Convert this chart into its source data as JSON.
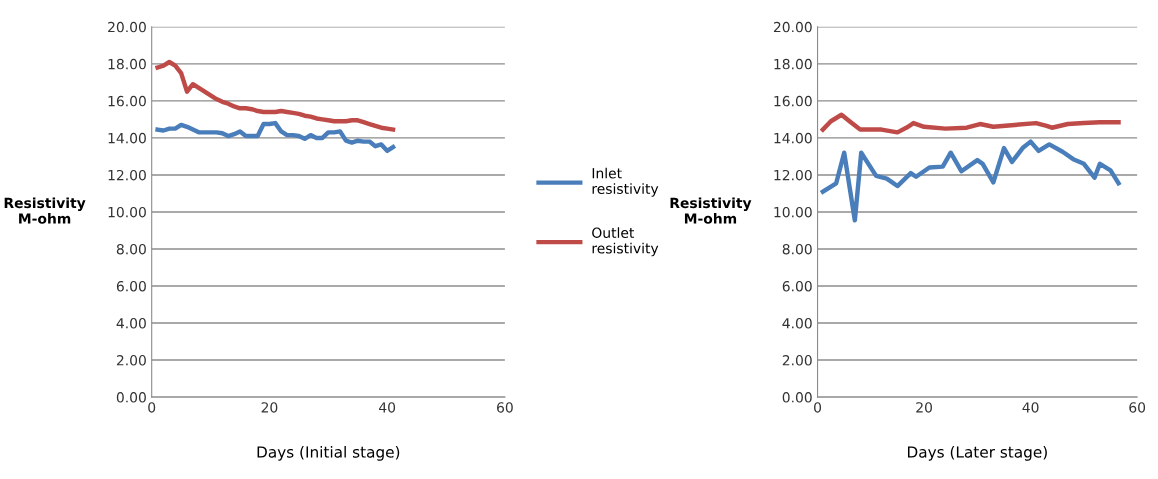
{
  "chart_data": [
    {
      "type": "line",
      "xlabel": "Days (Initial stage)",
      "ylabel": "Resistivity\nM-ohm",
      "xlim": [
        0,
        60
      ],
      "xticks": [
        0,
        20,
        40,
        60
      ],
      "ylim": [
        0,
        20
      ],
      "yticks": [
        {
          "value": 0,
          "label": "0.00"
        },
        {
          "value": 2,
          "label": "2.00"
        },
        {
          "value": 4,
          "label": "4.00"
        },
        {
          "value": 6,
          "label": "6.00"
        },
        {
          "value": 8,
          "label": "8.00"
        },
        {
          "value": 10,
          "label": "10.00"
        },
        {
          "value": 12,
          "label": "12.00"
        },
        {
          "value": 14,
          "label": "14.00"
        },
        {
          "value": 16,
          "label": "16.00"
        },
        {
          "value": 18,
          "label": "18.00"
        },
        {
          "value": 20,
          "label": "20.00"
        }
      ],
      "grid": "y",
      "legend": "right",
      "marker": "none",
      "line_style": "solid",
      "x": [
        1,
        2,
        3,
        4,
        5,
        6,
        7,
        8,
        9,
        10,
        11,
        12,
        13,
        14,
        15,
        16,
        17,
        18,
        19,
        20,
        21,
        22,
        23,
        24,
        25,
        26,
        27,
        28,
        29,
        30,
        31,
        32,
        33,
        34,
        35,
        36,
        37,
        38,
        39,
        40,
        41
      ],
      "series": [
        {
          "name": "Inlet\nresistivity",
          "color": "#4a7ebb",
          "values": [
            14.45,
            14.4,
            14.5,
            14.5,
            14.7,
            14.6,
            14.45,
            14.3,
            14.3,
            14.3,
            14.3,
            14.25,
            14.1,
            14.2,
            14.35,
            14.1,
            14.1,
            14.1,
            14.75,
            14.75,
            14.8,
            14.35,
            14.15,
            14.15,
            14.1,
            13.95,
            14.15,
            14.0,
            14.0,
            14.3,
            14.3,
            14.35,
            13.85,
            13.75,
            13.85,
            13.8,
            13.8,
            13.55,
            13.65,
            13.3,
            13.5
          ]
        },
        {
          "name": "Outlet\nresistivity",
          "color": "#be4b48",
          "values": [
            17.8,
            17.9,
            18.1,
            17.9,
            17.5,
            16.5,
            16.9,
            16.7,
            16.5,
            16.3,
            16.1,
            15.95,
            15.85,
            15.7,
            15.6,
            15.6,
            15.55,
            15.45,
            15.4,
            15.4,
            15.4,
            15.45,
            15.4,
            15.35,
            15.3,
            15.2,
            15.15,
            15.05,
            15.0,
            14.95,
            14.9,
            14.9,
            14.9,
            14.95,
            14.95,
            14.85,
            14.75,
            14.65,
            14.55,
            14.5,
            14.45
          ]
        }
      ]
    },
    {
      "type": "line",
      "xlabel": "Days (Later stage)",
      "ylabel": "Resistivity\nM-ohm",
      "xlim": [
        0,
        60
      ],
      "xticks": [
        0,
        20,
        40,
        60
      ],
      "ylim": [
        0,
        20
      ],
      "yticks": [
        {
          "value": 0,
          "label": "0.00"
        },
        {
          "value": 2,
          "label": "2.00"
        },
        {
          "value": 4,
          "label": "4.00"
        },
        {
          "value": 6,
          "label": "6.00"
        },
        {
          "value": 8,
          "label": "8.00"
        },
        {
          "value": 10,
          "label": "10.00"
        },
        {
          "value": 12,
          "label": "12.00"
        },
        {
          "value": 14,
          "label": "14.00"
        },
        {
          "value": 16,
          "label": "16.00"
        },
        {
          "value": 18,
          "label": "18.00"
        },
        {
          "value": 20,
          "label": "20.00"
        }
      ],
      "grid": "y",
      "marker": "none",
      "line_style": "solid",
      "series": [
        {
          "color": "#4a7ebb",
          "x": [
            1,
            3.5,
            5,
            7,
            8.2,
            11,
            13,
            15,
            17.5,
            18.5,
            21,
            23.5,
            25,
            27,
            30,
            31,
            33,
            35,
            36.5,
            38.5,
            40,
            41.5,
            43.5,
            46,
            48,
            50,
            52,
            53,
            55,
            56.5
          ],
          "values": [
            11.1,
            11.55,
            13.2,
            9.55,
            13.2,
            11.95,
            11.8,
            11.4,
            12.1,
            11.9,
            12.4,
            12.45,
            13.2,
            12.2,
            12.8,
            12.6,
            11.6,
            13.45,
            12.7,
            13.45,
            13.8,
            13.3,
            13.65,
            13.25,
            12.85,
            12.6,
            11.85,
            12.6,
            12.25,
            11.55
          ]
        },
        {
          "color": "#be4b48",
          "x": [
            1,
            2.5,
            4.5,
            6,
            8,
            10,
            12,
            15,
            17,
            18,
            20,
            24,
            28,
            30.5,
            33,
            37,
            41,
            43,
            44,
            47,
            50,
            53,
            56.5
          ],
          "values": [
            14.45,
            14.9,
            15.25,
            14.9,
            14.45,
            14.45,
            14.45,
            14.3,
            14.6,
            14.8,
            14.6,
            14.5,
            14.55,
            14.75,
            14.6,
            14.7,
            14.8,
            14.65,
            14.55,
            14.75,
            14.8,
            14.85,
            14.85
          ]
        }
      ]
    }
  ]
}
